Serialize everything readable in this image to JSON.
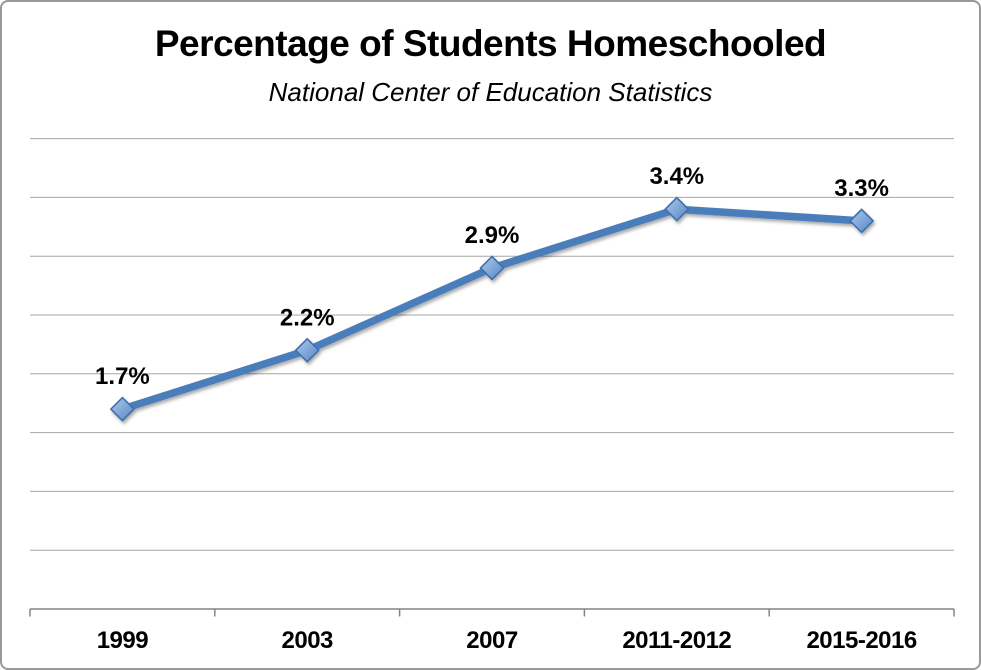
{
  "frame": {
    "border_color": "#999999",
    "background": "#FFFFFF"
  },
  "chart_data": {
    "type": "line",
    "title": "Percentage of Students Homeschooled",
    "subtitle": "National Center of Education Statistics",
    "categories": [
      "1999",
      "2003",
      "2007",
      "2011-2012",
      "2015-2016"
    ],
    "series": [
      {
        "name": "Percentage of Students Homeschooled",
        "values": [
          1.7,
          2.2,
          2.9,
          3.4,
          3.3
        ],
        "point_labels": [
          "1.7%",
          "2.2%",
          "2.9%",
          "3.4%",
          "3.3%"
        ]
      }
    ],
    "xlabel": "",
    "ylabel": "",
    "ylim": [
      0,
      4
    ],
    "gridline_step": 0.5,
    "grid": "horizontal",
    "legend": "none",
    "y_axis_labels_visible": false,
    "marker_shape": "diamond",
    "colors": {
      "line": "#4A7EBB",
      "marker_fill_light": "#AECBEC",
      "marker_fill_dark": "#5585C6",
      "marker_stroke": "#3E6FAC",
      "gridline": "#A6A6A6",
      "axis": "#848484",
      "text": "#000000"
    }
  }
}
